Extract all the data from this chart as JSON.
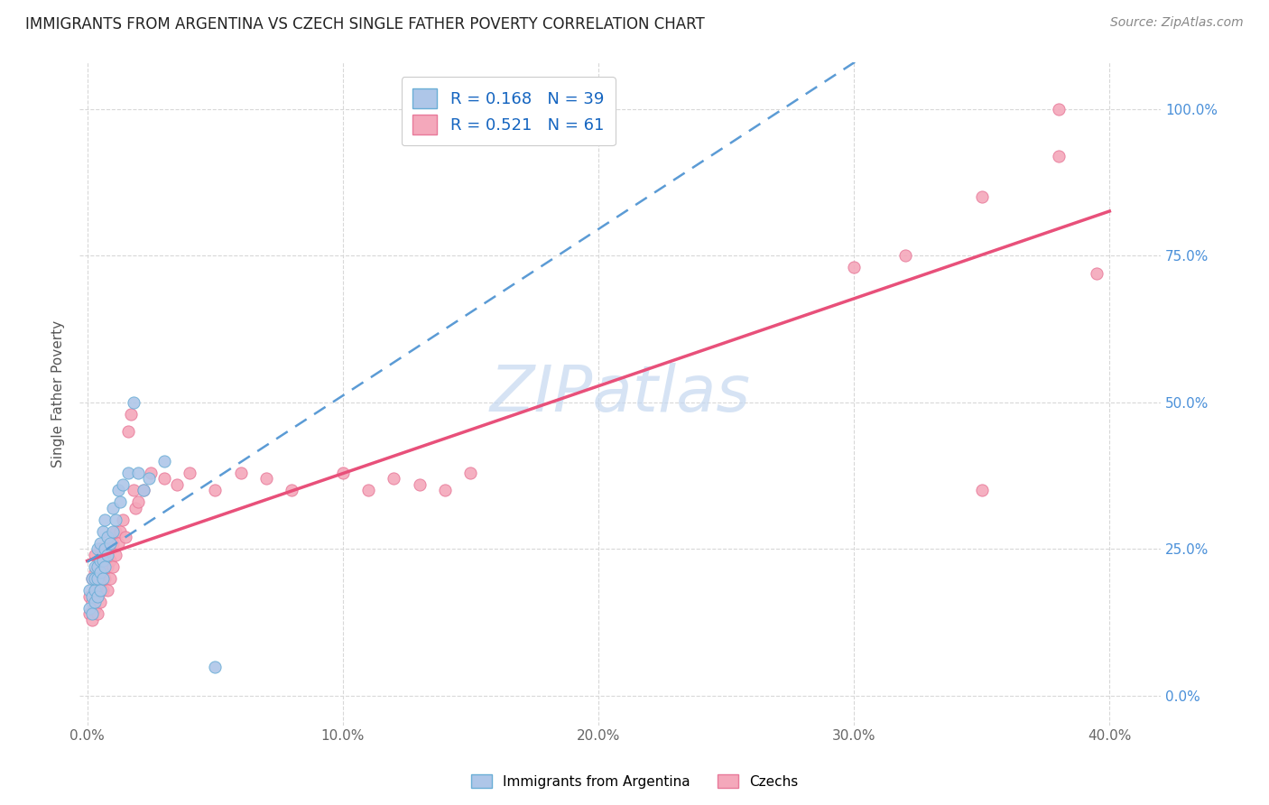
{
  "title": "IMMIGRANTS FROM ARGENTINA VS CZECH SINGLE FATHER POVERTY CORRELATION CHART",
  "source": "Source: ZipAtlas.com",
  "xlabel_ticks": [
    "0.0%",
    "",
    "",
    "",
    "",
    "10.0%",
    "",
    "",
    "",
    "",
    "20.0%",
    "",
    "",
    "",
    "",
    "30.0%",
    "",
    "",
    "",
    "",
    "40.0%"
  ],
  "xlabel_tick_vals": [
    0.0,
    0.02,
    0.04,
    0.06,
    0.08,
    0.1,
    0.12,
    0.14,
    0.16,
    0.18,
    0.2,
    0.22,
    0.24,
    0.26,
    0.28,
    0.3,
    0.32,
    0.34,
    0.36,
    0.38,
    0.4
  ],
  "ylabel": "Single Father Poverty",
  "right_ytick_labels": [
    "0.0%",
    "25.0%",
    "50.0%",
    "75.0%",
    "100.0%"
  ],
  "right_ytick_vals": [
    0.0,
    0.25,
    0.5,
    0.75,
    1.0
  ],
  "xlim": [
    -0.003,
    0.42
  ],
  "ylim": [
    -0.05,
    1.08
  ],
  "argentina_R": 0.168,
  "argentina_N": 39,
  "czech_R": 0.521,
  "czech_N": 61,
  "argentina_color": "#aec6e8",
  "argentina_edge_color": "#6aaed6",
  "argentina_line_color": "#5b9bd5",
  "czech_color": "#f4a8bb",
  "czech_edge_color": "#e87a9a",
  "czech_line_color": "#e8507a",
  "legend_color": "#1565c0",
  "background_color": "#ffffff",
  "grid_color": "#d8d8d8",
  "watermark_color": "#c5d8f0",
  "argentina_scatter_x": [
    0.001,
    0.001,
    0.002,
    0.002,
    0.002,
    0.003,
    0.003,
    0.003,
    0.003,
    0.004,
    0.004,
    0.004,
    0.004,
    0.005,
    0.005,
    0.005,
    0.005,
    0.006,
    0.006,
    0.006,
    0.007,
    0.007,
    0.007,
    0.008,
    0.008,
    0.009,
    0.01,
    0.01,
    0.011,
    0.012,
    0.013,
    0.014,
    0.016,
    0.018,
    0.02,
    0.022,
    0.024,
    0.03,
    0.05
  ],
  "argentina_scatter_y": [
    0.15,
    0.18,
    0.14,
    0.17,
    0.2,
    0.16,
    0.18,
    0.2,
    0.22,
    0.17,
    0.2,
    0.22,
    0.25,
    0.18,
    0.21,
    0.23,
    0.26,
    0.2,
    0.23,
    0.28,
    0.22,
    0.25,
    0.3,
    0.24,
    0.27,
    0.26,
    0.28,
    0.32,
    0.3,
    0.35,
    0.33,
    0.36,
    0.38,
    0.5,
    0.38,
    0.35,
    0.37,
    0.4,
    0.05
  ],
  "czech_scatter_x": [
    0.001,
    0.001,
    0.002,
    0.002,
    0.002,
    0.003,
    0.003,
    0.003,
    0.003,
    0.004,
    0.004,
    0.004,
    0.005,
    0.005,
    0.005,
    0.005,
    0.006,
    0.006,
    0.006,
    0.007,
    0.007,
    0.008,
    0.008,
    0.008,
    0.009,
    0.009,
    0.01,
    0.01,
    0.011,
    0.011,
    0.012,
    0.013,
    0.014,
    0.015,
    0.016,
    0.017,
    0.018,
    0.019,
    0.02,
    0.022,
    0.025,
    0.03,
    0.035,
    0.04,
    0.05,
    0.06,
    0.07,
    0.08,
    0.1,
    0.11,
    0.12,
    0.13,
    0.14,
    0.15,
    0.3,
    0.32,
    0.35,
    0.38,
    0.35,
    0.38,
    0.395
  ],
  "czech_scatter_y": [
    0.14,
    0.17,
    0.13,
    0.16,
    0.2,
    0.15,
    0.18,
    0.21,
    0.24,
    0.14,
    0.17,
    0.22,
    0.16,
    0.19,
    0.22,
    0.25,
    0.18,
    0.21,
    0.24,
    0.2,
    0.23,
    0.18,
    0.22,
    0.25,
    0.2,
    0.23,
    0.22,
    0.26,
    0.24,
    0.28,
    0.26,
    0.28,
    0.3,
    0.27,
    0.45,
    0.48,
    0.35,
    0.32,
    0.33,
    0.35,
    0.38,
    0.37,
    0.36,
    0.38,
    0.35,
    0.38,
    0.37,
    0.35,
    0.38,
    0.35,
    0.37,
    0.36,
    0.35,
    0.38,
    0.73,
    0.75,
    0.85,
    0.92,
    0.35,
    1.0,
    0.72
  ]
}
